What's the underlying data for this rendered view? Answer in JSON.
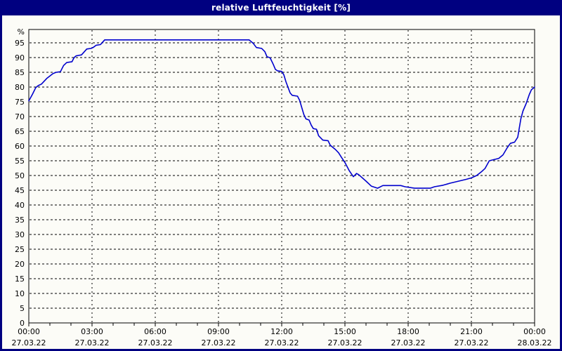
{
  "window": {
    "title": "relative Luftfeuchtigkeit [%]"
  },
  "colors": {
    "titlebar_bg": "#000080",
    "titlebar_text": "#ffffff",
    "page_bg": "#fcfcf7",
    "page_border": "#000080",
    "axis": "#000000",
    "grid": "#000000",
    "line": "#0000cd",
    "label": "#000000"
  },
  "chart_data": {
    "type": "line",
    "title": "relative Luftfeuchtigkeit [%]",
    "xlabel": "",
    "ylabel": "%",
    "ylim": [
      0,
      99.7
    ],
    "x_range_hours": [
      0,
      24
    ],
    "grid": "dashed",
    "legend": "none",
    "y_ticks": [
      0,
      5,
      10,
      15,
      20,
      25,
      30,
      35,
      40,
      45,
      50,
      55,
      60,
      65,
      70,
      75,
      80,
      85,
      90,
      95
    ],
    "x_ticks": [
      {
        "hour": 0,
        "time": "00:00",
        "date": "27.03.22"
      },
      {
        "hour": 3,
        "time": "03:00",
        "date": "27.03.22"
      },
      {
        "hour": 6,
        "time": "06:00",
        "date": "27.03.22"
      },
      {
        "hour": 9,
        "time": "09:00",
        "date": "27.03.22"
      },
      {
        "hour": 12,
        "time": "12:00",
        "date": "27.03.22"
      },
      {
        "hour": 15,
        "time": "15:00",
        "date": "27.03.22"
      },
      {
        "hour": 18,
        "time": "18:00",
        "date": "27.03.22"
      },
      {
        "hour": 21,
        "time": "21:00",
        "date": "27.03.22"
      },
      {
        "hour": 24,
        "time": "00:00",
        "date": "28.03.22"
      }
    ],
    "x_minor_tick_every_hours": 1,
    "series": [
      {
        "name": "relative Luftfeuchtigkeit [%]",
        "color": "#0000cd",
        "points": [
          [
            0,
            75.3
          ],
          [
            0.17,
            77.5
          ],
          [
            0.33,
            79.8
          ],
          [
            0.45,
            80.5
          ],
          [
            0.6,
            81.0
          ],
          [
            0.85,
            82.9
          ],
          [
            1.15,
            84.6
          ],
          [
            1.3,
            85.0
          ],
          [
            1.5,
            85.2
          ],
          [
            1.65,
            87.3
          ],
          [
            1.8,
            88.3
          ],
          [
            2.05,
            88.6
          ],
          [
            2.15,
            90.0
          ],
          [
            2.25,
            90.6
          ],
          [
            2.5,
            90.9
          ],
          [
            2.65,
            92.1
          ],
          [
            2.75,
            92.9
          ],
          [
            2.95,
            93.1
          ],
          [
            3.05,
            93.4
          ],
          [
            3.2,
            94.2
          ],
          [
            3.4,
            94.4
          ],
          [
            3.5,
            95.2
          ],
          [
            3.6,
            96.0
          ],
          [
            10.45,
            96.0
          ],
          [
            10.65,
            94.8
          ],
          [
            10.8,
            93.4
          ],
          [
            11.05,
            93.1
          ],
          [
            11.2,
            92.0
          ],
          [
            11.3,
            90.3
          ],
          [
            11.45,
            89.9
          ],
          [
            11.6,
            87.7
          ],
          [
            11.7,
            86.0
          ],
          [
            11.8,
            85.5
          ],
          [
            12.0,
            85.3
          ],
          [
            12.1,
            84.2
          ],
          [
            12.2,
            81.8
          ],
          [
            12.3,
            79.9
          ],
          [
            12.4,
            78.0
          ],
          [
            12.5,
            77.2
          ],
          [
            12.75,
            76.9
          ],
          [
            12.85,
            75.5
          ],
          [
            12.95,
            73.1
          ],
          [
            13.05,
            70.7
          ],
          [
            13.15,
            69.2
          ],
          [
            13.3,
            68.8
          ],
          [
            13.4,
            67.1
          ],
          [
            13.5,
            65.9
          ],
          [
            13.65,
            65.7
          ],
          [
            13.75,
            63.5
          ],
          [
            13.95,
            62.0
          ],
          [
            14.2,
            61.8
          ],
          [
            14.3,
            60.3
          ],
          [
            14.55,
            58.8
          ],
          [
            14.7,
            57.7
          ],
          [
            14.85,
            56.0
          ],
          [
            15.0,
            54.4
          ],
          [
            15.2,
            51.7
          ],
          [
            15.4,
            49.6
          ],
          [
            15.55,
            50.7
          ],
          [
            15.65,
            50.3
          ],
          [
            16.0,
            48.1
          ],
          [
            16.25,
            46.4
          ],
          [
            16.55,
            45.7
          ],
          [
            16.8,
            46.6
          ],
          [
            17.65,
            46.6
          ],
          [
            17.85,
            46.2
          ],
          [
            18.3,
            45.7
          ],
          [
            19.05,
            45.7
          ],
          [
            19.25,
            46.2
          ],
          [
            19.65,
            46.7
          ],
          [
            20.0,
            47.4
          ],
          [
            20.35,
            48.0
          ],
          [
            20.75,
            48.7
          ],
          [
            21.0,
            49.2
          ],
          [
            21.25,
            50.0
          ],
          [
            21.5,
            51.4
          ],
          [
            21.65,
            52.4
          ],
          [
            21.85,
            55.0
          ],
          [
            22.3,
            55.8
          ],
          [
            22.5,
            57.0
          ],
          [
            22.7,
            59.4
          ],
          [
            22.85,
            60.9
          ],
          [
            23.05,
            61.3
          ],
          [
            23.2,
            63.0
          ],
          [
            23.35,
            69.3
          ],
          [
            23.45,
            71.9
          ],
          [
            23.6,
            74.4
          ],
          [
            23.75,
            77.5
          ],
          [
            23.85,
            79.1
          ],
          [
            24.0,
            80.0
          ]
        ]
      }
    ]
  }
}
